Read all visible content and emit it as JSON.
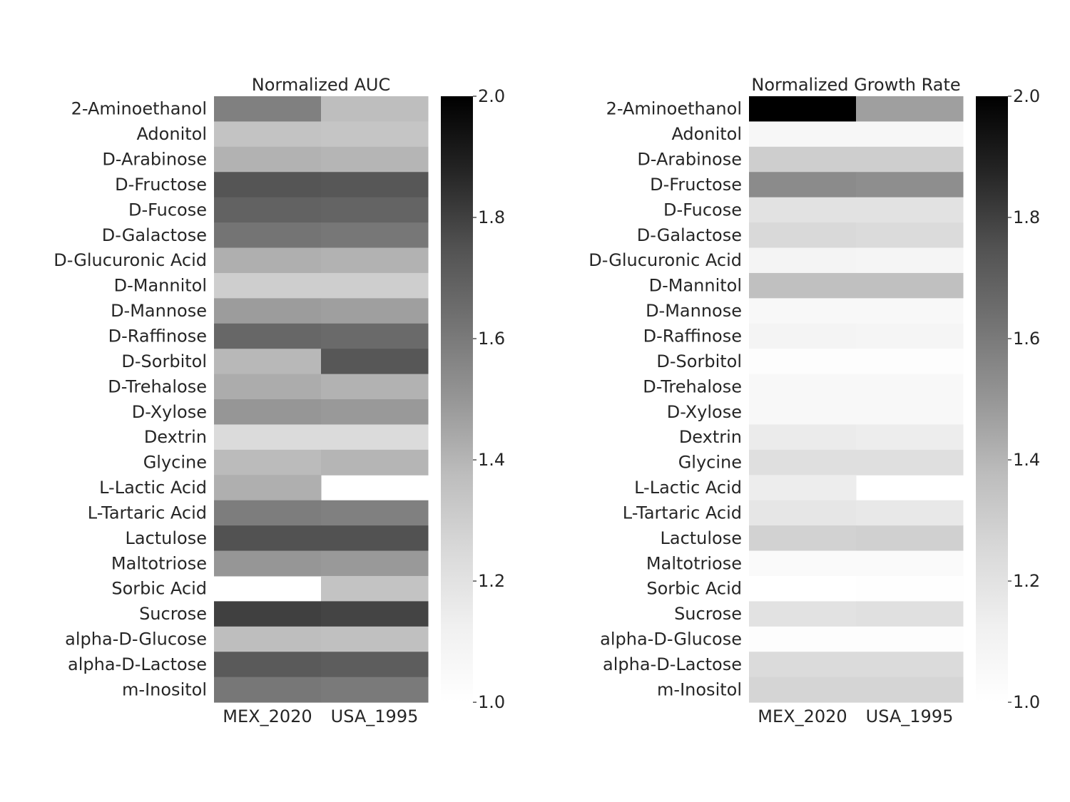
{
  "chart_data": [
    {
      "type": "heatmap",
      "title": "Normalized AUC",
      "columns": [
        "MEX_2020",
        "USA_1995"
      ],
      "rows": [
        "2-Aminoethanol",
        "Adonitol",
        "D-Arabinose",
        "D-Fructose",
        "D-Fucose",
        "D-Galactose",
        "D-Glucuronic Acid",
        "D-Mannitol",
        "D-Mannose",
        "D-Raffinose",
        "D-Sorbitol",
        "D-Trehalose",
        "D-Xylose",
        "Dextrin",
        "Glycine",
        "L-Lactic Acid",
        "L-Tartaric Acid",
        "Lactulose",
        "Maltotriose",
        "Sorbic Acid",
        "Sucrose",
        "alpha-D-Glucose",
        "alpha-D-Lactose",
        "m-Inositol"
      ],
      "values": [
        [
          1.58,
          1.37
        ],
        [
          1.35,
          1.34
        ],
        [
          1.41,
          1.4
        ],
        [
          1.74,
          1.73
        ],
        [
          1.69,
          1.68
        ],
        [
          1.62,
          1.61
        ],
        [
          1.42,
          1.41
        ],
        [
          1.3,
          1.3
        ],
        [
          1.48,
          1.47
        ],
        [
          1.67,
          1.66
        ],
        [
          1.39,
          1.73
        ],
        [
          1.43,
          1.41
        ],
        [
          1.5,
          1.49
        ],
        [
          1.24,
          1.24
        ],
        [
          1.38,
          1.4
        ],
        [
          1.42,
          null
        ],
        [
          1.59,
          1.58
        ],
        [
          1.75,
          1.75
        ],
        [
          1.5,
          1.49
        ],
        [
          null,
          1.35
        ],
        [
          1.8,
          1.79
        ],
        [
          1.37,
          1.36
        ],
        [
          1.72,
          1.71
        ],
        [
          1.61,
          1.6
        ]
      ],
      "colorbar": {
        "min": 1.0,
        "max": 2.0,
        "ticks": [
          "1.0",
          "1.2",
          "1.4",
          "1.6",
          "1.8",
          "2.0"
        ]
      },
      "colormap": "Greys"
    },
    {
      "type": "heatmap",
      "title": "Normalized Growth Rate",
      "columns": [
        "MEX_2020",
        "USA_1995"
      ],
      "rows": [
        "2-Aminoethanol",
        "Adonitol",
        "D-Arabinose",
        "D-Fructose",
        "D-Fucose",
        "D-Galactose",
        "D-Glucuronic Acid",
        "D-Mannitol",
        "D-Mannose",
        "D-Raffinose",
        "D-Sorbitol",
        "D-Trehalose",
        "D-Xylose",
        "Dextrin",
        "Glycine",
        "L-Lactic Acid",
        "L-Tartaric Acid",
        "Lactulose",
        "Maltotriose",
        "Sorbic Acid",
        "Sucrose",
        "alpha-D-Glucose",
        "alpha-D-Lactose",
        "m-Inositol"
      ],
      "values": [
        [
          2.0,
          1.47
        ],
        [
          1.07,
          1.07
        ],
        [
          1.3,
          1.3
        ],
        [
          1.54,
          1.53
        ],
        [
          1.2,
          1.2
        ],
        [
          1.25,
          1.24
        ],
        [
          1.09,
          1.08
        ],
        [
          1.36,
          1.36
        ],
        [
          1.06,
          1.06
        ],
        [
          1.09,
          1.08
        ],
        [
          1.02,
          1.02
        ],
        [
          1.06,
          1.06
        ],
        [
          1.06,
          1.06
        ],
        [
          1.15,
          1.14
        ],
        [
          1.22,
          1.22
        ],
        [
          1.14,
          null
        ],
        [
          1.18,
          1.17
        ],
        [
          1.28,
          1.29
        ],
        [
          1.04,
          1.04
        ],
        [
          1.0,
          1.01
        ],
        [
          1.2,
          1.21
        ],
        [
          1.02,
          1.02
        ],
        [
          1.24,
          1.24
        ],
        [
          1.27,
          1.27
        ]
      ],
      "colorbar": {
        "min": 1.0,
        "max": 2.0,
        "ticks": [
          "1.0",
          "1.2",
          "1.4",
          "1.6",
          "1.8",
          "2.0"
        ]
      },
      "colormap": "Greys"
    }
  ]
}
